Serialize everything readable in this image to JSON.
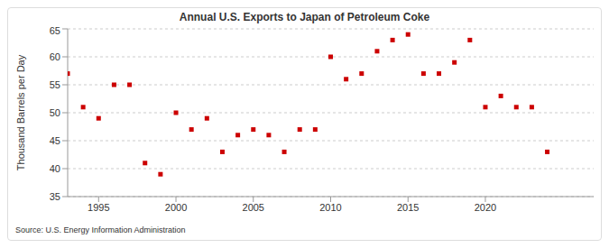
{
  "chart_data": {
    "type": "scatter",
    "title": "Annual U.S. Exports to Japan of Petroleum Coke",
    "y_label": "Thousand Barrels per Day",
    "source": "Source: U.S. Energy Information Administration",
    "x": [
      1993,
      1994,
      1995,
      1996,
      1997,
      1998,
      1999,
      2000,
      2001,
      2002,
      2003,
      2004,
      2005,
      2006,
      2007,
      2008,
      2009,
      2010,
      2011,
      2012,
      2013,
      2014,
      2015,
      2016,
      2017,
      2018,
      2019,
      2020,
      2021,
      2022,
      2023,
      2024
    ],
    "values": [
      57,
      51,
      49,
      55,
      55,
      41,
      39,
      50,
      47,
      49,
      43,
      46,
      47,
      46,
      43,
      47,
      47,
      60,
      56,
      57,
      61,
      63,
      64,
      57,
      57,
      59,
      63,
      51,
      53,
      51,
      51,
      43
    ],
    "color": "#cc0000",
    "marker": "square",
    "xlim": [
      1993,
      2027
    ],
    "xticks": [
      1995,
      2000,
      2005,
      2010,
      2015,
      2020
    ],
    "ylim": [
      35,
      65
    ],
    "yticks": [
      35,
      40,
      45,
      50,
      55,
      60,
      65
    ],
    "grid": true
  }
}
